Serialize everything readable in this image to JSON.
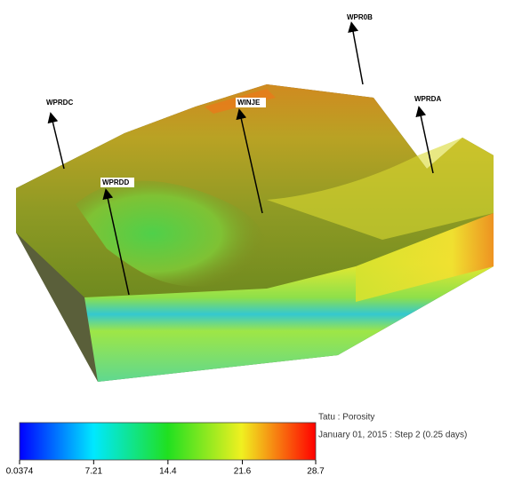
{
  "wells": [
    "WPR0B",
    "WPRDC",
    "WINJE",
    "WPRDA",
    "WPRDD"
  ],
  "info": {
    "title": "Tatu : Porosity",
    "time": "January 01, 2015 : Step 2 (0.25 days)"
  },
  "colorbar": {
    "ticks": [
      {
        "value": 0.0374,
        "label": "0.0374"
      },
      {
        "value": 7.21,
        "label": "7.21"
      },
      14.4,
      21.6,
      28.7
    ]
  }
}
